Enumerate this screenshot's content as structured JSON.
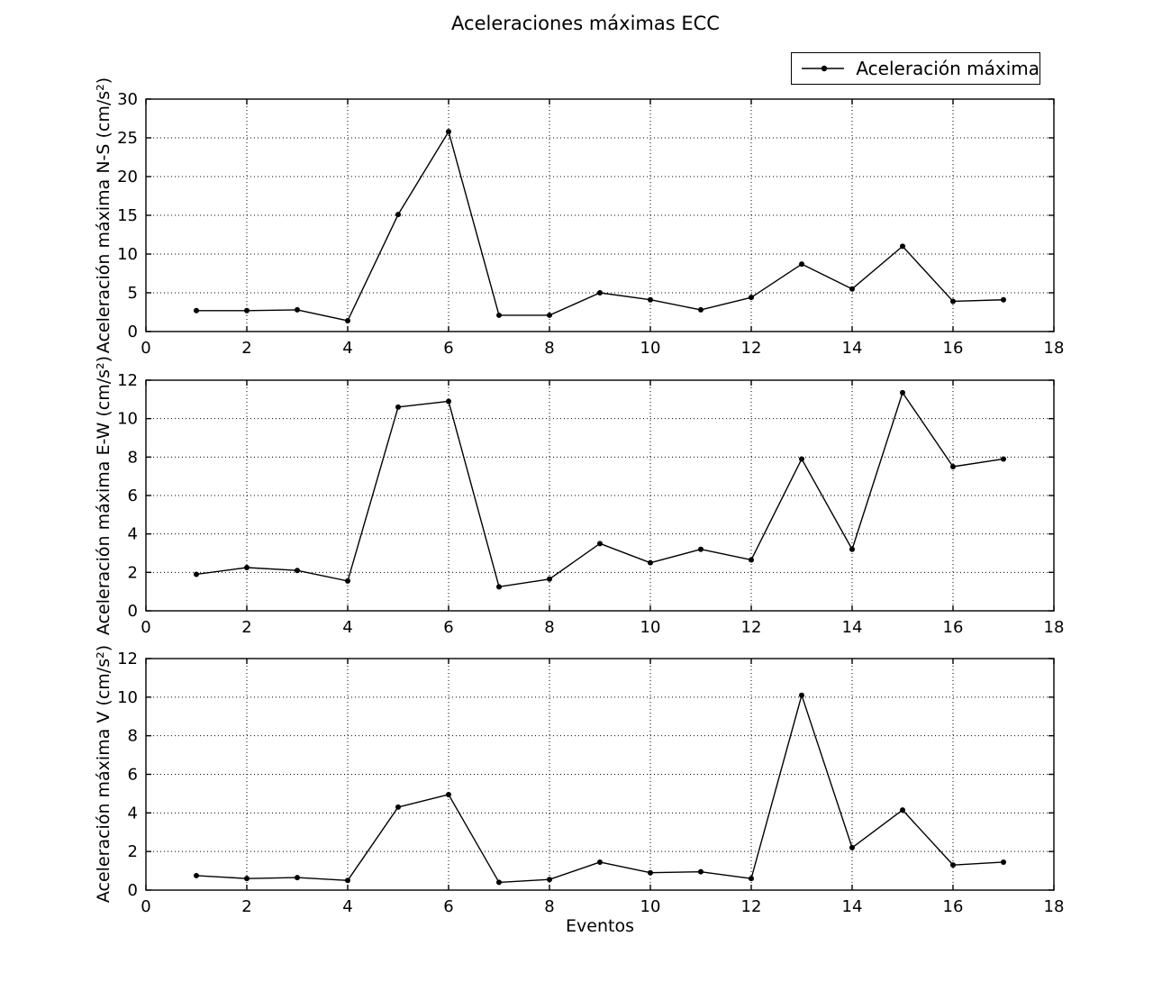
{
  "figure": {
    "title": "Aceleraciones máximas ECC",
    "background": "#ffffff",
    "line_color": "#000000",
    "grid_color": "#000000",
    "xlabel": "Eventos"
  },
  "legend": {
    "label": "Aceleración máxima",
    "position": "upper right",
    "marker": "dot-on-line"
  },
  "chart_data": [
    {
      "type": "line",
      "name": "N-S",
      "series_label": "Aceleración máxima",
      "ylabel": "Aceleración máxima N-S (cm/s²)",
      "xlabel": "",
      "x": [
        1,
        2,
        3,
        4,
        5,
        6,
        7,
        8,
        9,
        10,
        11,
        12,
        13,
        14,
        15,
        16,
        17
      ],
      "y": [
        2.7,
        2.7,
        2.8,
        1.4,
        15.1,
        25.8,
        2.1,
        2.1,
        5.0,
        4.1,
        2.8,
        4.4,
        8.7,
        5.5,
        11.0,
        3.9,
        4.1
      ],
      "xlim": [
        0,
        18
      ],
      "ylim": [
        0,
        30
      ],
      "xticks": [
        0,
        2,
        4,
        6,
        8,
        10,
        12,
        14,
        16,
        18
      ],
      "yticks": [
        0,
        5,
        10,
        15,
        20,
        25,
        30
      ],
      "grid": true,
      "grid_style": "dotted",
      "marker": "point"
    },
    {
      "type": "line",
      "name": "E-W",
      "series_label": "Aceleración máxima",
      "ylabel": "Aceleración máxima E-W (cm/s²)",
      "xlabel": "",
      "x": [
        1,
        2,
        3,
        4,
        5,
        6,
        7,
        8,
        9,
        10,
        11,
        12,
        13,
        14,
        15,
        16,
        17
      ],
      "y": [
        1.9,
        2.25,
        2.1,
        1.55,
        10.6,
        10.9,
        1.25,
        1.65,
        3.5,
        2.5,
        3.2,
        2.65,
        7.9,
        3.2,
        11.35,
        7.5,
        7.9
      ],
      "xlim": [
        0,
        18
      ],
      "ylim": [
        0,
        12
      ],
      "xticks": [
        0,
        2,
        4,
        6,
        8,
        10,
        12,
        14,
        16,
        18
      ],
      "yticks": [
        0,
        2,
        4,
        6,
        8,
        10,
        12
      ],
      "grid": true,
      "grid_style": "dotted",
      "marker": "point"
    },
    {
      "type": "line",
      "name": "V",
      "series_label": "Aceleración máxima",
      "ylabel": "Aceleración máxima V (cm/s²)",
      "xlabel": "Eventos",
      "x": [
        1,
        2,
        3,
        4,
        5,
        6,
        7,
        8,
        9,
        10,
        11,
        12,
        13,
        14,
        15,
        16,
        17
      ],
      "y": [
        0.75,
        0.6,
        0.65,
        0.5,
        4.3,
        4.95,
        0.4,
        0.55,
        1.45,
        0.9,
        0.95,
        0.6,
        10.1,
        2.2,
        4.15,
        1.3,
        1.45
      ],
      "xlim": [
        0,
        18
      ],
      "ylim": [
        0,
        12
      ],
      "xticks": [
        0,
        2,
        4,
        6,
        8,
        10,
        12,
        14,
        16,
        18
      ],
      "yticks": [
        0,
        2,
        4,
        6,
        8,
        10,
        12
      ],
      "grid": true,
      "grid_style": "dotted",
      "marker": "point"
    }
  ]
}
